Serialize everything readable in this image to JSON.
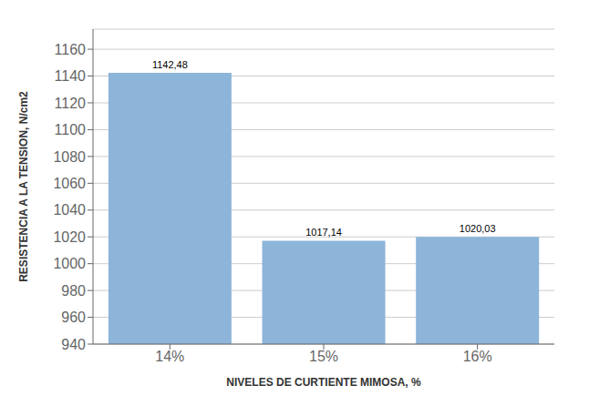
{
  "chart_data": {
    "type": "bar",
    "categories": [
      "14%",
      "15%",
      "16%"
    ],
    "values": [
      1142.48,
      1017.14,
      1020.03
    ],
    "value_labels": [
      "1142,48",
      "1017,14",
      "1020,03"
    ],
    "data_labels": true,
    "color": "#8DB4D9",
    "xlabel": "NIVELES DE CURTIENTE MIMOSA, %",
    "ylabel": "RESISTENCIA A LA TENSION, N/cm2",
    "ylim": [
      940,
      1175
    ],
    "yticks": [
      940,
      960,
      980,
      1000,
      1020,
      1040,
      1060,
      1080,
      1100,
      1120,
      1140,
      1160
    ],
    "grid": true
  }
}
